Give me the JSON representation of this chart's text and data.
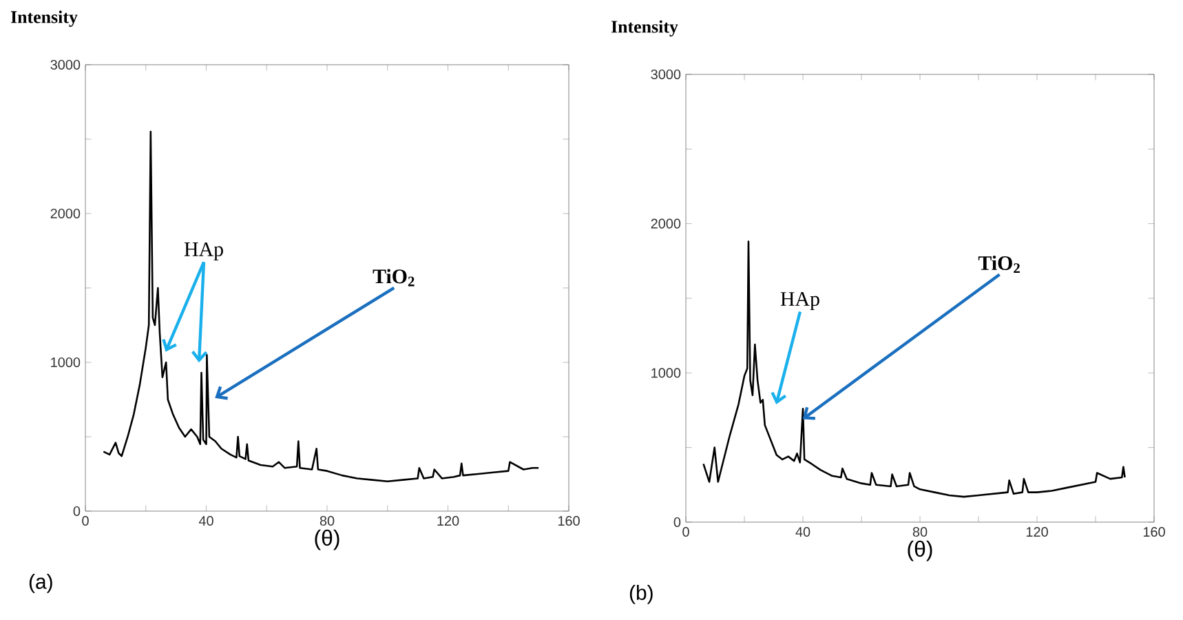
{
  "chart_data": [
    {
      "type": "line",
      "xlabel": "(θ)",
      "ylabel": "Intensity",
      "xlim": [
        0,
        160
      ],
      "ylim": [
        0,
        3000
      ],
      "xticks": [
        0,
        {
          "value": 20,
          "label": null
        },
        40,
        {
          "value": 60,
          "label": null
        },
        80,
        {
          "value": 100,
          "label": null
        },
        120,
        {
          "value": 140,
          "label": null
        },
        160
      ],
      "yticks": [
        0,
        {
          "value": 500,
          "label": null
        },
        1000,
        {
          "value": 1500,
          "label": null
        },
        2000,
        {
          "value": 2500,
          "label": null
        },
        3000
      ],
      "series": [
        {
          "color": "#000000",
          "x": [
            6,
            8,
            10,
            11,
            12,
            14,
            16,
            18,
            20,
            21,
            21.6,
            22.3,
            23,
            24,
            24.6,
            25.5,
            26.7,
            27.3,
            29,
            31,
            33,
            35,
            37,
            38,
            38.4,
            39,
            40,
            40.2,
            41,
            43,
            45,
            48,
            50,
            50.5,
            51,
            53,
            53.5,
            54,
            58,
            62,
            64,
            66,
            70,
            70.5,
            71,
            75,
            76.5,
            77,
            80,
            85,
            90,
            95,
            100,
            105,
            110,
            110.5,
            112,
            115,
            115.5,
            118,
            122,
            124,
            124.5,
            125,
            130,
            135,
            140,
            140.5,
            145,
            148,
            150
          ],
          "values": [
            400,
            380,
            460,
            390,
            370,
            500,
            650,
            850,
            1100,
            1250,
            2550,
            1300,
            1250,
            1500,
            1200,
            900,
            1000,
            750,
            650,
            560,
            500,
            550,
            500,
            450,
            930,
            480,
            450,
            1050,
            500,
            470,
            420,
            380,
            360,
            500,
            370,
            350,
            450,
            340,
            310,
            300,
            330,
            290,
            300,
            470,
            290,
            280,
            420,
            280,
            270,
            240,
            220,
            210,
            200,
            210,
            220,
            290,
            220,
            230,
            280,
            220,
            230,
            240,
            320,
            240,
            250,
            260,
            270,
            330,
            280,
            290,
            290
          ]
        }
      ],
      "annotations": [
        "HAp",
        {
          "text": "TiO$_{2}$",
          "x": 42.9,
          "y": 760
        },
        "(a)"
      ]
    },
    {
      "type": "line",
      "xlabel": "(θ)",
      "ylabel": "Intensity",
      "xlim": [
        0,
        160
      ],
      "ylim": [
        0,
        3000
      ],
      "xticks": [
        0,
        {
          "value": 20,
          "label": null
        },
        40,
        {
          "value": 60,
          "label": null
        },
        80,
        {
          "value": 100,
          "label": null
        },
        120,
        {
          "value": 140,
          "label": null
        },
        160
      ],
      "yticks": [
        0,
        {
          "value": 500,
          "label": null
        },
        1000,
        {
          "value": 1500,
          "label": null
        },
        2000,
        {
          "value": 2500,
          "label": null
        },
        3000
      ],
      "series": [
        {
          "color": "#000000",
          "x": [
            6,
            8,
            9.8,
            11,
            15,
            18,
            20,
            21,
            21.4,
            22,
            22.8,
            23.6,
            24.5,
            25.5,
            26.3,
            27,
            29,
            31,
            33,
            35,
            37,
            38,
            39,
            40,
            40.5,
            43,
            46,
            50,
            53,
            53.5,
            55,
            60,
            63,
            63.5,
            65,
            70,
            70.5,
            72,
            76,
            76.5,
            78,
            80,
            85,
            90,
            95,
            100,
            105,
            110,
            110.5,
            112,
            115,
            115.5,
            117,
            120,
            125,
            130,
            135,
            140,
            140.5,
            145,
            149,
            149.5,
            150
          ],
          "values": [
            390,
            270,
            500,
            270,
            580,
            790,
            980,
            1030,
            1880,
            950,
            850,
            1190,
            950,
            800,
            820,
            650,
            550,
            450,
            420,
            440,
            410,
            460,
            400,
            760,
            420,
            390,
            350,
            310,
            300,
            360,
            290,
            260,
            250,
            330,
            250,
            240,
            320,
            240,
            250,
            330,
            240,
            220,
            200,
            180,
            170,
            180,
            190,
            200,
            280,
            190,
            200,
            290,
            200,
            200,
            210,
            230,
            250,
            270,
            330,
            290,
            300,
            370,
            300
          ]
        }
      ],
      "annotations": [
        "HAp",
        {
          "text": "TiO$_{2}$",
          "x": 39.9,
          "y": 690
        },
        "(b)"
      ]
    }
  ]
}
